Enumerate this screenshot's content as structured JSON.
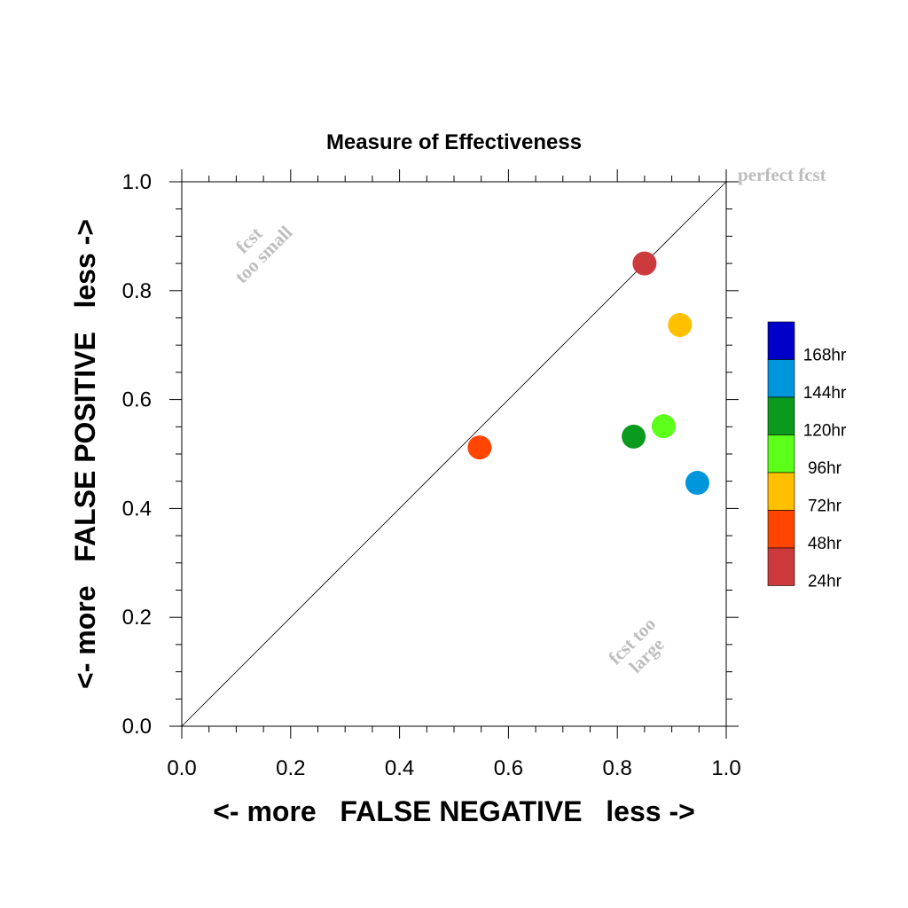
{
  "chart_data": {
    "type": "scatter",
    "title": "Measure of Effectiveness",
    "xlabel": "<- more   FALSE NEGATIVE   less ->",
    "ylabel": "<- more   FALSE POSITIVE   less ->",
    "xlim": [
      0.0,
      1.0
    ],
    "ylim": [
      0.0,
      1.0
    ],
    "x_ticks": [
      "0.0",
      "0.2",
      "0.4",
      "0.6",
      "0.8",
      "1.0"
    ],
    "y_ticks": [
      "0.0",
      "0.2",
      "0.4",
      "0.6",
      "0.8",
      "1.0"
    ],
    "grid": false,
    "legend_position": "right",
    "diagonal_line": true,
    "annotations": {
      "perfect": "perfect fcst",
      "too_small_line1": "fcst",
      "too_small_line2": "too small",
      "too_large_line1": "fcst too",
      "too_large_line2": "large"
    },
    "points": [
      {
        "label": "24hr",
        "x": 0.85,
        "y": 0.85,
        "color": "#cc3a3e"
      },
      {
        "label": "48hr",
        "x": 0.547,
        "y": 0.512,
        "color": "#ff4500"
      },
      {
        "label": "72hr",
        "x": 0.915,
        "y": 0.737,
        "color": "#ffc000"
      },
      {
        "label": "96hr",
        "x": 0.885,
        "y": 0.551,
        "color": "#5cff1a"
      },
      {
        "label": "120hr",
        "x": 0.83,
        "y": 0.532,
        "color": "#0a9a1e"
      },
      {
        "label": "144hr",
        "x": 0.947,
        "y": 0.447,
        "color": "#0096dc"
      }
    ],
    "legend": [
      {
        "label": "168hr",
        "color": "#0000c8"
      },
      {
        "label": "144hr",
        "color": "#0096dc"
      },
      {
        "label": "120hr",
        "color": "#0a9a1e"
      },
      {
        "label": "96hr",
        "color": "#5cff1a"
      },
      {
        "label": "72hr",
        "color": "#ffc000"
      },
      {
        "label": "48hr",
        "color": "#ff4500"
      },
      {
        "label": "24hr",
        "color": "#cc3a3e"
      }
    ]
  }
}
